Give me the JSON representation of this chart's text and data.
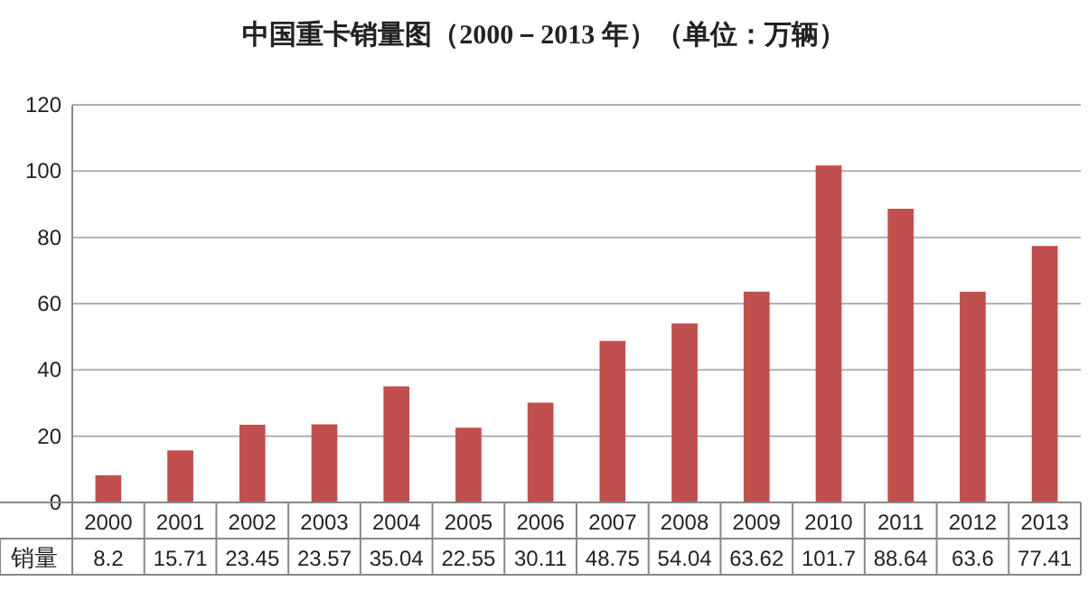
{
  "chart_data": {
    "type": "bar",
    "title": "中国重卡销量图（2000－2013 年）（单位：万辆）",
    "categories": [
      "2000",
      "2001",
      "2002",
      "2003",
      "2004",
      "2005",
      "2006",
      "2007",
      "2008",
      "2009",
      "2010",
      "2011",
      "2012",
      "2013"
    ],
    "series": [
      {
        "name": "销量",
        "color": "#c0504d",
        "values": [
          8.2,
          15.71,
          23.45,
          23.57,
          35.04,
          22.55,
          30.11,
          48.75,
          54.04,
          63.62,
          101.7,
          88.64,
          63.6,
          77.41
        ]
      }
    ],
    "ylim": [
      0,
      120
    ],
    "yticks": [
      0,
      20,
      40,
      60,
      80,
      100,
      120
    ],
    "grid": "y",
    "data_labels": true
  }
}
